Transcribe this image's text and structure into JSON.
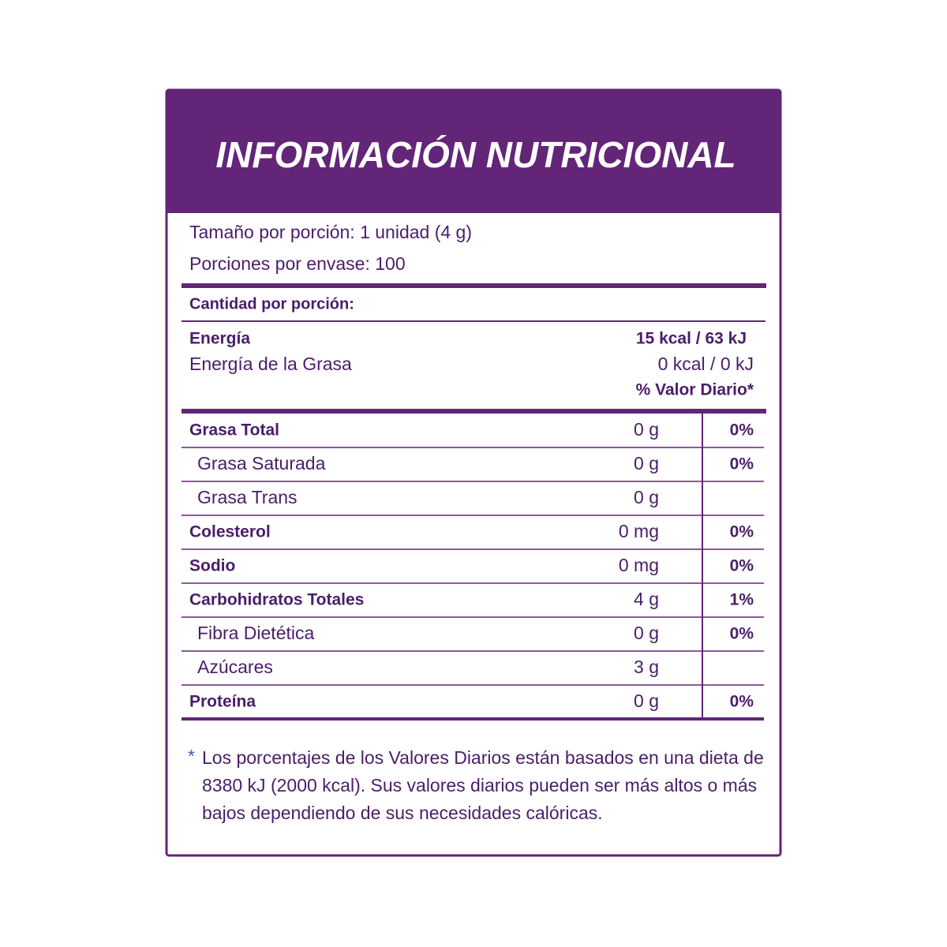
{
  "header": {
    "title": "INFORMACIÓN NUTRICIONAL"
  },
  "serving": {
    "size": "Tamaño por porción: 1 unidad (4 g)",
    "servings": "Porciones por envase: 100"
  },
  "amount_per_serving": "Cantidad por porción:",
  "energy": {
    "label": "Energía",
    "value": "15 kcal / 63 kJ"
  },
  "energy_fat": {
    "label": "Energía de la Grasa",
    "value": "0 kcal / 0 kJ"
  },
  "daily_value_header": "% Valor Diario*",
  "table": {
    "rows": [
      {
        "name": "Grasa Total",
        "amount": "0 g",
        "dv": "0%"
      },
      {
        "name": "Grasa Saturada",
        "amount": "0 g",
        "dv": "0%"
      },
      {
        "name": "Grasa Trans",
        "amount": "0 g"
      },
      {
        "name": "Colesterol",
        "amount": "0 mg",
        "dv": "0%"
      },
      {
        "name": "Sodio",
        "amount": "0 mg",
        "dv": "0%"
      },
      {
        "name": "Carbohidratos Totales",
        "amount": "4 g",
        "dv": "1%"
      },
      {
        "name": "Fibra Dietética",
        "amount": "0 g",
        "dv": "0%"
      },
      {
        "name": "Azúcares",
        "amount": "3 g"
      },
      {
        "name": "Proteína",
        "amount": "0 g",
        "dv": "0%"
      }
    ]
  },
  "footnote": {
    "marker": "*",
    "lines": [
      "Los porcentajes  de los Valores Diarios están basados en una dieta de",
      "8380 kJ (2000 kcal). Sus valores diarios pueden ser más altos o más",
      "bajos dependiendo de sus necesidades calóricas."
    ]
  }
}
